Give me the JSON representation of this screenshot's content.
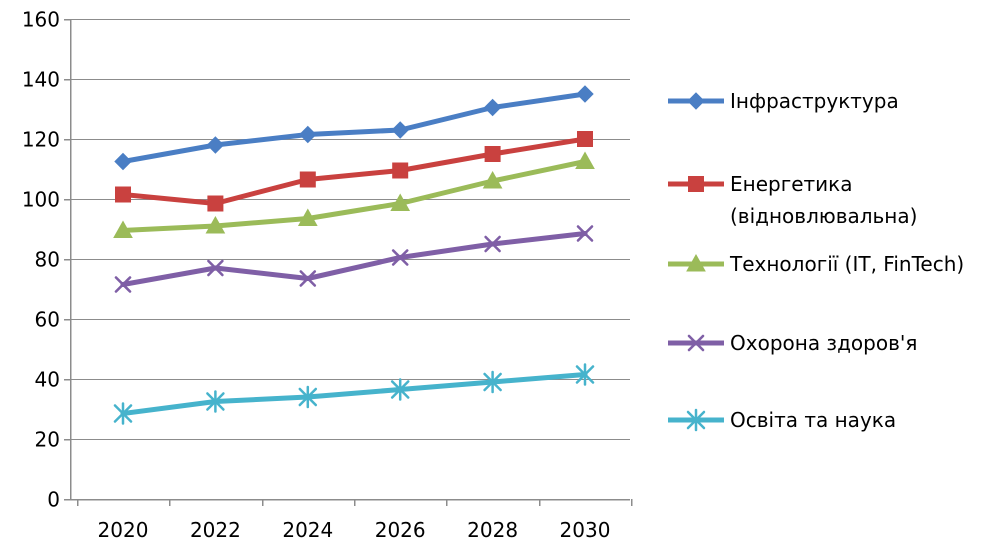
{
  "chart_data": {
    "type": "line",
    "title": "",
    "xlabel": "",
    "ylabel": "",
    "x": [
      "2020",
      "2022",
      "2024",
      "2026",
      "2028",
      "2030"
    ],
    "ylim": [
      0,
      160
    ],
    "yticks": [
      0,
      20,
      40,
      60,
      80,
      100,
      120,
      140,
      160
    ],
    "grid": true,
    "legend_position": "right",
    "series": [
      {
        "name": "Інфраструктура",
        "name_lines": [
          "Інфраструктура"
        ],
        "color": "#4a7ec4",
        "marker": "diamond",
        "values": [
          112.5,
          118,
          121.5,
          123,
          130.5,
          135
        ]
      },
      {
        "name": "Енергетика (відновлювальна)",
        "name_lines": [
          "Енергетика",
          "(відновлювальна)"
        ],
        "color": "#c9413f",
        "marker": "square",
        "values": [
          101.5,
          98.5,
          106.5,
          109.5,
          115,
          120
        ]
      },
      {
        "name": "Технології (IT, FinTech)",
        "name_lines": [
          "Технології (IT, FinTech)"
        ],
        "color": "#9bbb59",
        "marker": "triangle",
        "values": [
          89.5,
          91,
          93.5,
          98.5,
          106,
          112.5
        ]
      },
      {
        "name": "Охорона здоров'я",
        "name_lines": [
          "Охорона здоров'я"
        ],
        "color": "#7f5fa6",
        "marker": "x",
        "values": [
          71.5,
          77,
          73.5,
          80.5,
          85,
          88.5
        ]
      },
      {
        "name": "Освіта та наука",
        "name_lines": [
          "Освіта та наука"
        ],
        "color": "#46b3cc",
        "marker": "asterisk",
        "values": [
          28.5,
          32.5,
          34,
          36.5,
          39,
          41.5
        ]
      }
    ]
  }
}
